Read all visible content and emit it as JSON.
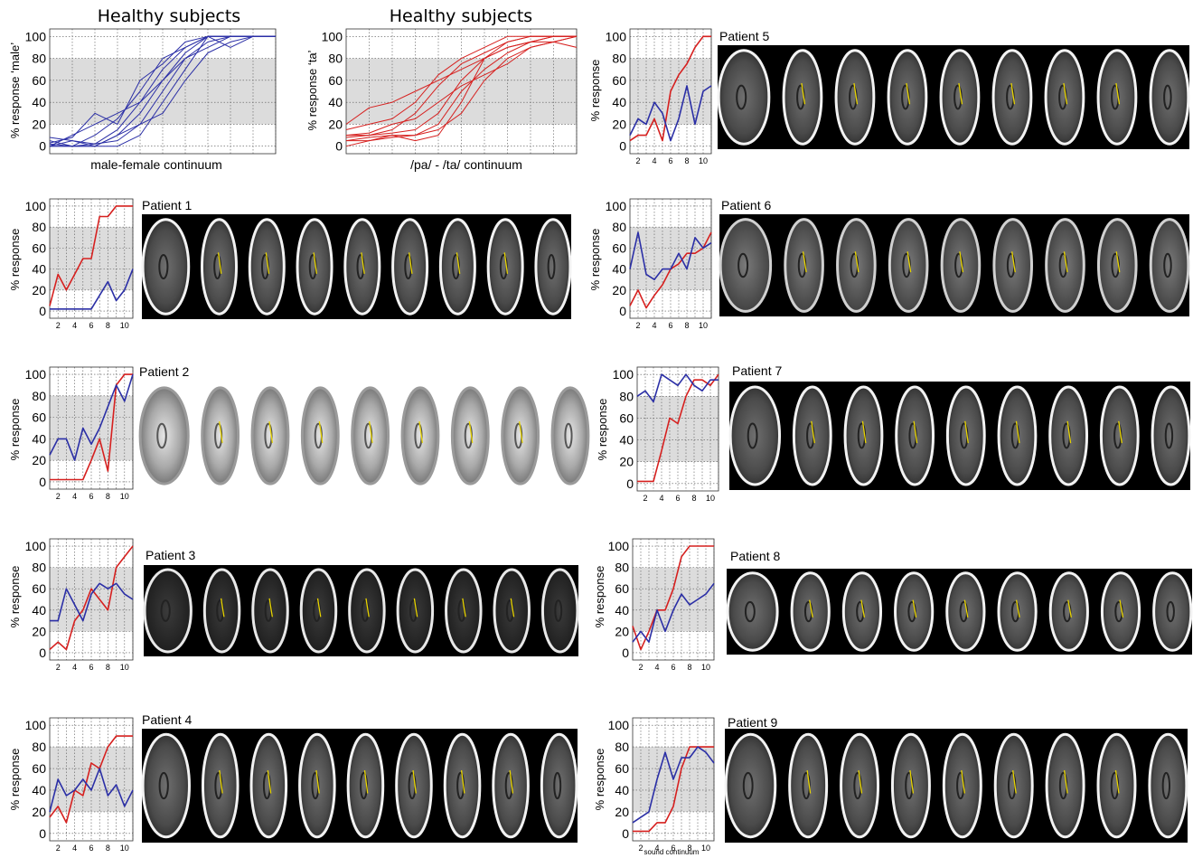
{
  "colors": {
    "red": "#d6201f",
    "blue": "#2b2fa6",
    "band": "#dcdcdc",
    "grid": "#555555",
    "yellow": "#e8d400"
  },
  "healthy": [
    {
      "title": "Healthy subjects",
      "ylabel": "% response ‘male’",
      "xlabel": "male-female continuum"
    },
    {
      "title": "Healthy subjects",
      "ylabel": "% response ‘ta’",
      "xlabel": "/pa/ - /ta/ continuum"
    }
  ],
  "patients": [
    {
      "label": "Patient 1",
      "ylabel": "% response",
      "slices": 9,
      "style": "ct"
    },
    {
      "label": "Patient 2",
      "ylabel": "% response",
      "slices": 9,
      "style": "t1"
    },
    {
      "label": "Patient 3",
      "ylabel": "% response",
      "slices": 9,
      "style": "ctdark"
    },
    {
      "label": "Patient 4",
      "ylabel": "% response",
      "slices": 9,
      "style": "ct"
    },
    {
      "label": "Patient 5",
      "ylabel": "% response",
      "slices": 9,
      "style": "ct"
    },
    {
      "label": "Patient 6",
      "ylabel": "% response",
      "slices": 9,
      "style": "flair"
    },
    {
      "label": "Patient 7",
      "ylabel": "% response",
      "slices": 9,
      "style": "ct"
    },
    {
      "label": "Patient 8",
      "ylabel": "% response",
      "slices": 9,
      "style": "ct"
    },
    {
      "label": "Patient 9",
      "ylabel": "% response",
      "slices": 9,
      "style": "ct"
    }
  ],
  "bottom_note": "sound continuum",
  "chart_data": [
    {
      "type": "line",
      "name": "healthy-gender",
      "ylim": [
        0,
        100
      ],
      "xlim": [
        1,
        11
      ],
      "yticks": [
        0,
        20,
        40,
        60,
        80,
        100
      ],
      "band": [
        20,
        80
      ],
      "color": "blue",
      "series": [
        {
          "x": [
            1,
            2,
            3,
            4,
            5,
            6,
            7,
            8,
            9,
            10,
            11
          ],
          "values": [
            0,
            0,
            2,
            5,
            20,
            50,
            80,
            95,
            100,
            100,
            100
          ]
        },
        {
          "x": [
            1,
            2,
            3,
            4,
            5,
            6,
            7,
            8,
            9,
            10,
            11
          ],
          "values": [
            5,
            0,
            0,
            10,
            30,
            60,
            85,
            100,
            100,
            100,
            100
          ]
        },
        {
          "x": [
            1,
            2,
            3,
            4,
            5,
            6,
            7,
            8,
            9,
            10,
            11
          ],
          "values": [
            8,
            5,
            2,
            15,
            40,
            70,
            90,
            100,
            100,
            100,
            100
          ]
        },
        {
          "x": [
            1,
            2,
            3,
            4,
            5,
            6,
            7,
            8,
            9,
            10,
            11
          ],
          "values": [
            0,
            10,
            20,
            30,
            40,
            60,
            80,
            90,
            100,
            100,
            100
          ]
        },
        {
          "x": [
            1,
            2,
            3,
            4,
            5,
            6,
            7,
            8,
            9,
            10,
            11
          ],
          "values": [
            0,
            0,
            0,
            0,
            10,
            40,
            70,
            100,
            100,
            100,
            100
          ]
        },
        {
          "x": [
            1,
            2,
            3,
            4,
            5,
            6,
            7,
            8,
            9,
            10,
            11
          ],
          "values": [
            3,
            8,
            30,
            20,
            60,
            75,
            95,
            100,
            90,
            100,
            100
          ]
        },
        {
          "x": [
            1,
            2,
            3,
            4,
            5,
            6,
            7,
            8,
            9,
            10,
            11
          ],
          "values": [
            0,
            5,
            0,
            10,
            20,
            30,
            60,
            85,
            95,
            100,
            100
          ]
        },
        {
          "x": [
            1,
            2,
            3,
            4,
            5,
            6,
            7,
            8,
            9,
            10,
            11
          ],
          "values": [
            2,
            0,
            10,
            25,
            50,
            80,
            90,
            100,
            100,
            100,
            100
          ]
        }
      ]
    },
    {
      "type": "line",
      "name": "healthy-phoneme",
      "ylim": [
        0,
        100
      ],
      "xlim": [
        1,
        11
      ],
      "yticks": [
        0,
        20,
        40,
        60,
        80,
        100
      ],
      "band": [
        20,
        80
      ],
      "color": "red",
      "series": [
        {
          "x": [
            1,
            2,
            3,
            4,
            5,
            6,
            7,
            8,
            9,
            10,
            11
          ],
          "values": [
            10,
            10,
            12,
            15,
            30,
            60,
            80,
            90,
            95,
            100,
            100
          ]
        },
        {
          "x": [
            1,
            2,
            3,
            4,
            5,
            6,
            7,
            8,
            9,
            10,
            11
          ],
          "values": [
            5,
            8,
            10,
            10,
            20,
            50,
            70,
            85,
            95,
            100,
            100
          ]
        },
        {
          "x": [
            1,
            2,
            3,
            4,
            5,
            6,
            7,
            8,
            9,
            10,
            11
          ],
          "values": [
            20,
            35,
            40,
            50,
            60,
            70,
            80,
            90,
            95,
            95,
            90
          ]
        },
        {
          "x": [
            1,
            2,
            3,
            4,
            5,
            6,
            7,
            8,
            9,
            10,
            11
          ],
          "values": [
            0,
            5,
            10,
            5,
            10,
            40,
            80,
            95,
            100,
            100,
            100
          ]
        },
        {
          "x": [
            1,
            2,
            3,
            4,
            5,
            6,
            7,
            8,
            9,
            10,
            11
          ],
          "values": [
            10,
            12,
            20,
            25,
            40,
            55,
            65,
            75,
            90,
            95,
            100
          ]
        },
        {
          "x": [
            1,
            2,
            3,
            4,
            5,
            6,
            7,
            8,
            9,
            10,
            11
          ],
          "values": [
            8,
            10,
            15,
            30,
            55,
            75,
            85,
            95,
            100,
            100,
            100
          ]
        },
        {
          "x": [
            1,
            2,
            3,
            4,
            5,
            6,
            7,
            8,
            9,
            10,
            11
          ],
          "values": [
            5,
            5,
            8,
            10,
            15,
            30,
            60,
            80,
            90,
            95,
            100
          ]
        },
        {
          "x": [
            1,
            2,
            3,
            4,
            5,
            6,
            7,
            8,
            9,
            10,
            11
          ],
          "values": [
            15,
            20,
            25,
            40,
            65,
            80,
            90,
            100,
            100,
            100,
            100
          ]
        }
      ]
    },
    {
      "type": "line",
      "name": "patient-1",
      "ylim": [
        0,
        100
      ],
      "xlim": [
        1,
        11
      ],
      "xticks": [
        2,
        4,
        6,
        8,
        10
      ],
      "band": [
        20,
        80
      ],
      "series": [
        {
          "color": "red",
          "x": [
            1,
            2,
            3,
            4,
            5,
            6,
            7,
            8,
            9,
            10,
            11
          ],
          "values": [
            5,
            35,
            20,
            35,
            50,
            50,
            90,
            90,
            100,
            100,
            100
          ]
        },
        {
          "color": "blue",
          "x": [
            1,
            2,
            3,
            4,
            5,
            6,
            7,
            8,
            9,
            10,
            11
          ],
          "values": [
            2,
            2,
            2,
            2,
            2,
            2,
            15,
            28,
            10,
            20,
            40
          ]
        }
      ]
    },
    {
      "type": "line",
      "name": "patient-2",
      "ylim": [
        0,
        100
      ],
      "xlim": [
        1,
        11
      ],
      "xticks": [
        2,
        4,
        6,
        8,
        10
      ],
      "band": [
        20,
        80
      ],
      "series": [
        {
          "color": "red",
          "x": [
            1,
            2,
            3,
            4,
            5,
            6,
            7,
            8,
            9,
            10,
            11
          ],
          "values": [
            2,
            2,
            2,
            2,
            2,
            20,
            40,
            10,
            90,
            100,
            100
          ]
        },
        {
          "color": "blue",
          "x": [
            1,
            2,
            3,
            4,
            5,
            6,
            7,
            8,
            9,
            10,
            11
          ],
          "values": [
            25,
            40,
            40,
            20,
            50,
            35,
            50,
            70,
            90,
            75,
            100
          ]
        }
      ]
    },
    {
      "type": "line",
      "name": "patient-3",
      "ylim": [
        0,
        100
      ],
      "xlim": [
        1,
        11
      ],
      "xticks": [
        2,
        4,
        6,
        8,
        10
      ],
      "band": [
        20,
        80
      ],
      "series": [
        {
          "color": "red",
          "x": [
            1,
            2,
            3,
            4,
            5,
            6,
            7,
            8,
            9,
            10,
            11
          ],
          "values": [
            3,
            10,
            3,
            30,
            40,
            60,
            50,
            40,
            80,
            90,
            100
          ]
        },
        {
          "color": "blue",
          "x": [
            1,
            2,
            3,
            4,
            5,
            6,
            7,
            8,
            9,
            10,
            11
          ],
          "values": [
            30,
            30,
            60,
            45,
            30,
            55,
            65,
            60,
            65,
            55,
            50
          ]
        }
      ]
    },
    {
      "type": "line",
      "name": "patient-4",
      "ylim": [
        0,
        100
      ],
      "xlim": [
        1,
        11
      ],
      "xticks": [
        2,
        4,
        6,
        8,
        10
      ],
      "band": [
        20,
        80
      ],
      "series": [
        {
          "color": "red",
          "x": [
            1,
            2,
            3,
            4,
            5,
            6,
            7,
            8,
            9,
            10,
            11
          ],
          "values": [
            15,
            25,
            10,
            40,
            35,
            65,
            60,
            80,
            90,
            90,
            90
          ]
        },
        {
          "color": "blue",
          "x": [
            1,
            2,
            3,
            4,
            5,
            6,
            7,
            8,
            9,
            10,
            11
          ],
          "values": [
            20,
            50,
            35,
            40,
            50,
            40,
            60,
            35,
            45,
            25,
            40
          ]
        }
      ]
    },
    {
      "type": "line",
      "name": "patient-5",
      "ylim": [
        0,
        100
      ],
      "xlim": [
        1,
        11
      ],
      "xticks": [
        2,
        4,
        6,
        8,
        10
      ],
      "band": [
        20,
        80
      ],
      "series": [
        {
          "color": "red",
          "x": [
            1,
            2,
            3,
            4,
            5,
            6,
            7,
            8,
            9,
            10,
            11
          ],
          "values": [
            5,
            10,
            10,
            25,
            5,
            50,
            65,
            75,
            90,
            100,
            100
          ]
        },
        {
          "color": "blue",
          "x": [
            1,
            2,
            3,
            4,
            5,
            6,
            7,
            8,
            9,
            10,
            11
          ],
          "values": [
            10,
            25,
            20,
            40,
            30,
            5,
            25,
            55,
            20,
            50,
            55
          ]
        }
      ]
    },
    {
      "type": "line",
      "name": "patient-6",
      "ylim": [
        0,
        100
      ],
      "xlim": [
        1,
        11
      ],
      "xticks": [
        2,
        4,
        6,
        8,
        10
      ],
      "band": [
        20,
        80
      ],
      "series": [
        {
          "color": "red",
          "x": [
            1,
            2,
            3,
            4,
            5,
            6,
            7,
            8,
            9,
            10,
            11
          ],
          "values": [
            5,
            20,
            3,
            15,
            25,
            40,
            45,
            55,
            55,
            60,
            75
          ]
        },
        {
          "color": "blue",
          "x": [
            1,
            2,
            3,
            4,
            5,
            6,
            7,
            8,
            9,
            10,
            11
          ],
          "values": [
            40,
            75,
            35,
            30,
            40,
            40,
            55,
            40,
            70,
            60,
            65
          ]
        }
      ]
    },
    {
      "type": "line",
      "name": "patient-7",
      "ylim": [
        0,
        100
      ],
      "xlim": [
        1,
        11
      ],
      "xticks": [
        2,
        4,
        6,
        8,
        10
      ],
      "band": [
        20,
        80
      ],
      "series": [
        {
          "color": "red",
          "x": [
            1,
            2,
            3,
            4,
            5,
            6,
            7,
            8,
            9,
            10,
            11
          ],
          "values": [
            2,
            2,
            2,
            30,
            60,
            55,
            80,
            95,
            95,
            90,
            100
          ]
        },
        {
          "color": "blue",
          "x": [
            1,
            2,
            3,
            4,
            5,
            6,
            7,
            8,
            9,
            10,
            11
          ],
          "values": [
            80,
            85,
            75,
            100,
            95,
            90,
            100,
            90,
            85,
            95,
            95
          ]
        }
      ]
    },
    {
      "type": "line",
      "name": "patient-8",
      "ylim": [
        0,
        100
      ],
      "xlim": [
        1,
        11
      ],
      "xticks": [
        2,
        4,
        6,
        8,
        10
      ],
      "band": [
        20,
        80
      ],
      "series": [
        {
          "color": "red",
          "x": [
            1,
            2,
            3,
            4,
            5,
            6,
            7,
            8,
            9,
            10,
            11
          ],
          "values": [
            25,
            3,
            20,
            40,
            40,
            60,
            90,
            100,
            100,
            100,
            100
          ]
        },
        {
          "color": "blue",
          "x": [
            1,
            2,
            3,
            4,
            5,
            6,
            7,
            8,
            9,
            10,
            11
          ],
          "values": [
            10,
            20,
            10,
            40,
            20,
            40,
            55,
            45,
            50,
            55,
            65
          ]
        }
      ]
    },
    {
      "type": "line",
      "name": "patient-9",
      "ylim": [
        0,
        100
      ],
      "xlim": [
        1,
        11
      ],
      "xticks": [
        2,
        4,
        6,
        8,
        10
      ],
      "band": [
        20,
        80
      ],
      "series": [
        {
          "color": "red",
          "x": [
            1,
            2,
            3,
            4,
            5,
            6,
            7,
            8,
            9,
            10,
            11
          ],
          "values": [
            2,
            2,
            2,
            10,
            10,
            25,
            60,
            80,
            80,
            80,
            80
          ]
        },
        {
          "color": "blue",
          "x": [
            1,
            2,
            3,
            4,
            5,
            6,
            7,
            8,
            9,
            10,
            11
          ],
          "values": [
            10,
            15,
            20,
            50,
            75,
            50,
            70,
            70,
            80,
            75,
            65
          ]
        }
      ]
    }
  ]
}
